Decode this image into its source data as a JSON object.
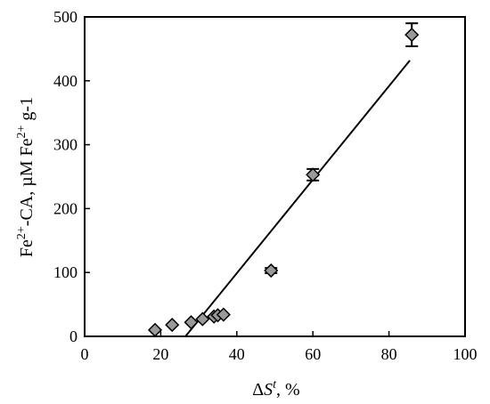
{
  "chart_data": {
    "type": "scatter",
    "xlabel_parts": {
      "delta": "Δ",
      "var": "S",
      "sup": "t",
      "rest": ", %"
    },
    "ylabel_parts": [
      {
        "text": "Fe"
      },
      {
        "text": "2+",
        "sup": true
      },
      {
        "text": "-CA, µM Fe"
      },
      {
        "text": "2+",
        "sup": true
      },
      {
        "text": " g-1"
      }
    ],
    "xlim": [
      0,
      100
    ],
    "ylim": [
      0,
      500
    ],
    "xticks": [
      0,
      20,
      40,
      60,
      80,
      100
    ],
    "yticks": [
      0,
      100,
      200,
      300,
      400,
      500
    ],
    "grid": false,
    "points": [
      {
        "x": 18.5,
        "y": 10,
        "err": 0
      },
      {
        "x": 23,
        "y": 18,
        "err": 0
      },
      {
        "x": 28,
        "y": 22,
        "err": 0
      },
      {
        "x": 31,
        "y": 27,
        "err": 0
      },
      {
        "x": 34,
        "y": 31,
        "err": 0
      },
      {
        "x": 35,
        "y": 33,
        "err": 0
      },
      {
        "x": 36.5,
        "y": 34,
        "err": 0
      },
      {
        "x": 49,
        "y": 103,
        "err": 4
      },
      {
        "x": 60,
        "y": 253,
        "err": 9
      },
      {
        "x": 86,
        "y": 472,
        "err": 18
      }
    ],
    "fit_line": {
      "x": [
        26.5,
        85.5
      ],
      "y": [
        0,
        432
      ]
    },
    "marker_color": "#9a9a9a",
    "marker_stroke": "#000000"
  }
}
